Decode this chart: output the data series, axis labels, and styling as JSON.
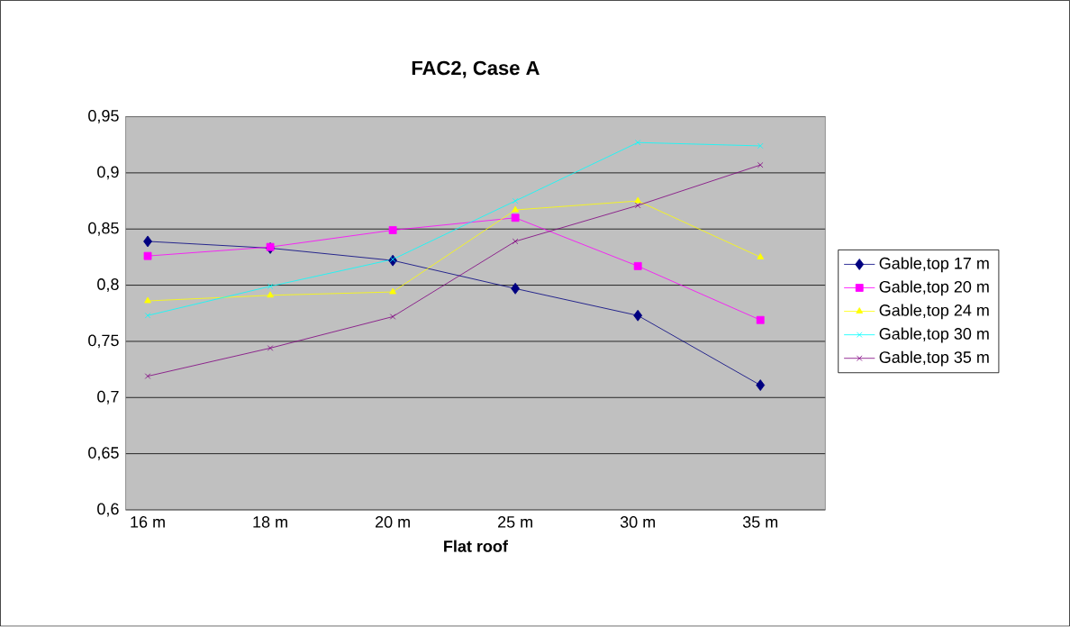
{
  "chart_data": {
    "type": "line",
    "title": "FAC2, Case A",
    "xlabel": "Flat roof",
    "categories": [
      "16 m",
      "18 m",
      "20 m",
      "25 m",
      "30 m",
      "35 m"
    ],
    "ylim": [
      0.6,
      0.95
    ],
    "yticks": [
      {
        "value": 0.6,
        "label": "0,6"
      },
      {
        "value": 0.65,
        "label": "0,65"
      },
      {
        "value": 0.7,
        "label": "0,7"
      },
      {
        "value": 0.75,
        "label": "0,75"
      },
      {
        "value": 0.8,
        "label": "0,8"
      },
      {
        "value": 0.85,
        "label": "0,85"
      },
      {
        "value": 0.9,
        "label": "0,9"
      },
      {
        "value": 0.95,
        "label": "0,95"
      }
    ],
    "grid": "y",
    "legend": "right",
    "series": [
      {
        "name": "Gable,top 17 m",
        "color": "#000080",
        "marker": "diamond",
        "values": [
          0.839,
          0.833,
          0.822,
          0.797,
          0.773,
          0.711
        ]
      },
      {
        "name": "Gable,top 20 m",
        "color": "#ff00ff",
        "marker": "square",
        "values": [
          0.826,
          0.834,
          0.849,
          0.86,
          0.817,
          0.769
        ]
      },
      {
        "name": "Gable,top 24 m",
        "color": "#ffff00",
        "marker": "triangle",
        "values": [
          0.786,
          0.791,
          0.794,
          0.867,
          0.875,
          0.825
        ]
      },
      {
        "name": "Gable,top 30 m",
        "color": "#00ffff",
        "marker": "cross",
        "values": [
          0.773,
          0.799,
          0.823,
          0.875,
          0.927,
          0.924
        ]
      },
      {
        "name": "Gable,top 35 m",
        "color": "#800080",
        "marker": "cross",
        "values": [
          0.719,
          0.744,
          0.772,
          0.839,
          0.871,
          0.907
        ]
      }
    ]
  }
}
